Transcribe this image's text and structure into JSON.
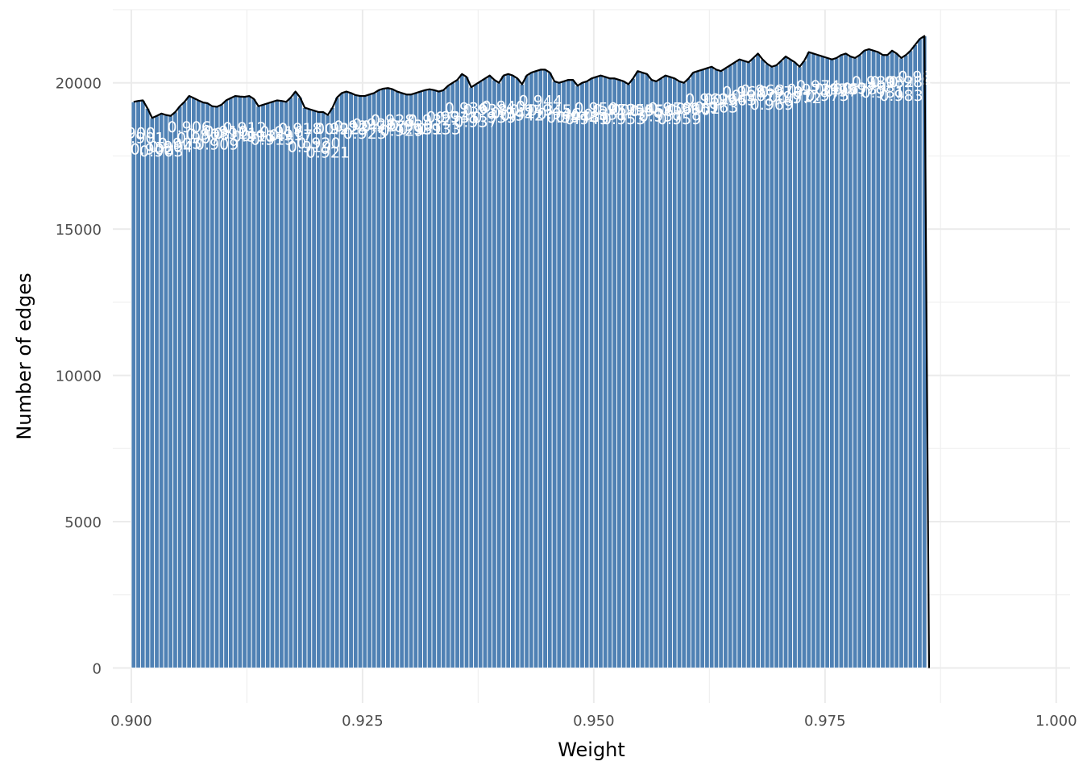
{
  "chart_data": {
    "type": "bar",
    "xlabel": "Weight",
    "ylabel": "Number of edges",
    "xlim": [
      0.898,
      1.0015
    ],
    "ylim": [
      -1200,
      22500
    ],
    "bin_start": 0.9,
    "bin_width": 0.0005,
    "x_ticks": [
      "0.900",
      "0.925",
      "0.950",
      "0.975",
      "1.000"
    ],
    "x_tick_values": [
      0.9,
      0.925,
      0.95,
      0.975,
      1.0
    ],
    "y_ticks": [
      "0",
      "5000",
      "10000",
      "15000",
      "20000"
    ],
    "y_tick_values": [
      0,
      5000,
      10000,
      15000,
      20000
    ],
    "values": [
      19350,
      19380,
      19400,
      19130,
      18800,
      18870,
      18950,
      18900,
      18870,
      19000,
      19200,
      19350,
      19550,
      19480,
      19400,
      19330,
      19300,
      19200,
      19180,
      19250,
      19400,
      19480,
      19550,
      19530,
      19520,
      19550,
      19450,
      19200,
      19250,
      19300,
      19350,
      19400,
      19380,
      19350,
      19500,
      19700,
      19500,
      19150,
      19100,
      19050,
      19000,
      19000,
      18900,
      19150,
      19500,
      19650,
      19700,
      19650,
      19580,
      19550,
      19550,
      19600,
      19650,
      19750,
      19800,
      19820,
      19780,
      19700,
      19650,
      19600,
      19600,
      19650,
      19700,
      19750,
      19780,
      19750,
      19700,
      19750,
      19900,
      20000,
      20100,
      20300,
      20200,
      19850,
      19950,
      20050,
      20150,
      20250,
      20100,
      20000,
      20250,
      20300,
      20250,
      20150,
      19950,
      20250,
      20350,
      20400,
      20450,
      20450,
      20350,
      20050,
      20000,
      20050,
      20100,
      20100,
      19900,
      20000,
      20050,
      20150,
      20200,
      20250,
      20200,
      20150,
      20150,
      20100,
      20050,
      19950,
      20150,
      20400,
      20350,
      20300,
      20100,
      20050,
      20150,
      20250,
      20200,
      20150,
      20050,
      20000,
      20150,
      20350,
      20400,
      20450,
      20500,
      20550,
      20450,
      20400,
      20500,
      20600,
      20700,
      20800,
      20750,
      20700,
      20850,
      21000,
      20800,
      20650,
      20550,
      20600,
      20750,
      20900,
      20800,
      20700,
      20550,
      20750,
      21050,
      21000,
      20950,
      20900,
      20850,
      20800,
      20850,
      20950,
      21000,
      20900,
      20850,
      20950,
      21100,
      21150,
      21100,
      21050,
      20950,
      20950,
      21100,
      21000,
      20850,
      20950,
      21100,
      21300,
      21500,
      21600
    ]
  }
}
